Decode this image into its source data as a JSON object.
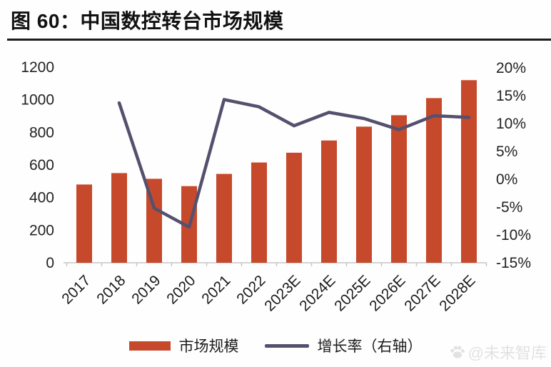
{
  "header": {
    "title": "图 60：中国数控转台市场规模"
  },
  "legend": {
    "bar_label": "市场规模",
    "line_label": "增长率（右轴）"
  },
  "watermark": {
    "icon": "paw-icon",
    "text": "@未来智库"
  },
  "colors": {
    "bar": "#C7492B",
    "line": "#55506E",
    "axis_line": "#c6c6c6",
    "axis_text": "#222222",
    "title_rule": "#1c1c1c",
    "watermark": "#e2e2e2"
  },
  "chart_data": {
    "type": "bar",
    "subtype": "bar+line combo, dual axis",
    "title": "中国数控转台市场规模",
    "categories": [
      "2017",
      "2018",
      "2019",
      "2020",
      "2021",
      "2022",
      "2023E",
      "2024E",
      "2025E",
      "2026E",
      "2027E",
      "2028E"
    ],
    "series": [
      {
        "name": "市场规模",
        "type": "bar",
        "axis": "left",
        "color": "#C7492B",
        "values": [
          480,
          550,
          515,
          470,
          545,
          615,
          675,
          750,
          835,
          905,
          1010,
          1120
        ]
      },
      {
        "name": "增长率（右轴）",
        "type": "line",
        "axis": "right",
        "color": "#55506E",
        "unit": "%",
        "values": [
          null,
          13.7,
          -5.2,
          -8.6,
          14.3,
          13.0,
          9.6,
          12.0,
          10.9,
          8.9,
          11.4,
          11.1
        ]
      }
    ],
    "left_axis": {
      "min": 0,
      "max": 1200,
      "ticks": [
        0,
        200,
        400,
        600,
        800,
        1000,
        1200
      ]
    },
    "right_axis": {
      "min": -15,
      "max": 20,
      "format": "percent",
      "ticks_pct": [
        20,
        15,
        10,
        5,
        0,
        -5,
        -10,
        -15
      ]
    },
    "grid": false,
    "legend_position": "bottom",
    "x_labels_rotated_45": true
  }
}
